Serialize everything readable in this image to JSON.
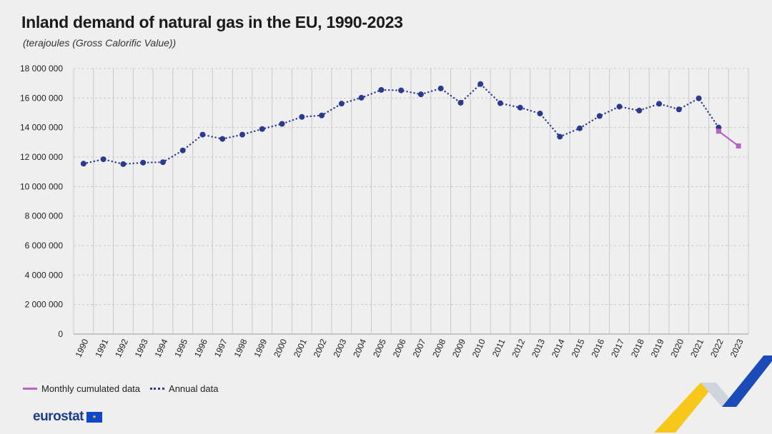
{
  "header": {
    "title": "Inland demand of natural gas in the EU, 1990-2023",
    "subtitle": "(terajoules (Gross Calorific Value))"
  },
  "legend": {
    "monthly_label": "Monthly cumulated data",
    "annual_label": "Annual data"
  },
  "footer": {
    "logo_text": "eurostat",
    "flag_glyph": "★"
  },
  "colors": {
    "annual": "#2b3a8f",
    "monthly": "#b565c0",
    "grid": "#c8c8c8",
    "deco_yellow": "#f7c81a",
    "deco_blue": "#1a4bb8"
  },
  "chart_data": {
    "type": "line",
    "title": "Inland demand of natural gas in the EU, 1990-2023",
    "subtitle": "(terajoules (Gross Calorific Value))",
    "xlabel": "",
    "ylabel": "",
    "ylim": [
      0,
      18000000
    ],
    "yticks": [
      0,
      2000000,
      4000000,
      6000000,
      8000000,
      10000000,
      12000000,
      14000000,
      16000000,
      18000000
    ],
    "ytick_labels": [
      "0",
      "2 000 000",
      "4 000 000",
      "6 000 000",
      "8 000 000",
      "10 000 000",
      "12 000 000",
      "14 000 000",
      "16 000 000",
      "18 000 000"
    ],
    "categories": [
      "1990",
      "1991",
      "1992",
      "1993",
      "1994",
      "1995",
      "1996",
      "1997",
      "1998",
      "1999",
      "2000",
      "2001",
      "2002",
      "2003",
      "2004",
      "2005",
      "2006",
      "2007",
      "2008",
      "2009",
      "2010",
      "2011",
      "2012",
      "2013",
      "2014",
      "2015",
      "2016",
      "2017",
      "2018",
      "2019",
      "2020",
      "2021",
      "2022",
      "2023"
    ],
    "grid": true,
    "legend_position": "bottom-left",
    "series": [
      {
        "name": "Annual data",
        "style": "dotted",
        "values": [
          11550000,
          11850000,
          11520000,
          11620000,
          11650000,
          12450000,
          13520000,
          13230000,
          13520000,
          13900000,
          14250000,
          14720000,
          14820000,
          15620000,
          16020000,
          16550000,
          16520000,
          16250000,
          16650000,
          15680000,
          16950000,
          15650000,
          15350000,
          14950000,
          13380000,
          13950000,
          14780000,
          15420000,
          15150000,
          15610000,
          15230000,
          15980000,
          14000000,
          null
        ]
      },
      {
        "name": "Monthly cumulated data",
        "style": "solid",
        "values": [
          null,
          null,
          null,
          null,
          null,
          null,
          null,
          null,
          null,
          null,
          null,
          null,
          null,
          null,
          null,
          null,
          null,
          null,
          null,
          null,
          null,
          null,
          null,
          null,
          null,
          null,
          null,
          null,
          null,
          null,
          null,
          null,
          13750000,
          12750000
        ]
      }
    ]
  }
}
